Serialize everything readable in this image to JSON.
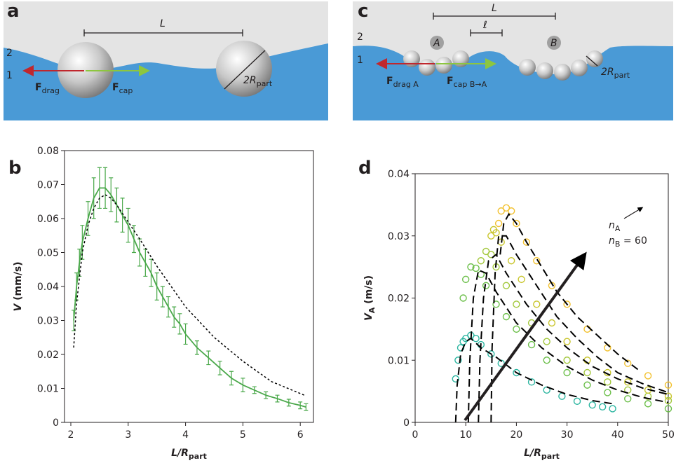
{
  "diagrams": {
    "a": {
      "panel": "a",
      "length": "L",
      "upper_fluid": "2",
      "lower_fluid": "1",
      "force_drag": {
        "main": "F",
        "sub": "drag"
      },
      "force_cap": {
        "main": "F",
        "sub": "cap"
      },
      "diameter": {
        "main": "2R",
        "sub": "part"
      }
    },
    "c": {
      "panel": "c",
      "length": "L",
      "gap": "ℓ",
      "cluster_a": "A",
      "cluster_b": "B",
      "upper_fluid": "2",
      "lower_fluid": "1",
      "force_drag": {
        "main": "F",
        "sub": "drag A"
      },
      "force_cap": {
        "main": "F",
        "sub": "cap B→A"
      },
      "diameter": {
        "main": "2R",
        "sub": "part"
      }
    }
  },
  "chart_data": [
    {
      "type": "line",
      "panel": "b",
      "xlabel": {
        "main": "L/R",
        "sub": "part"
      },
      "ylabel": {
        "main": "V",
        "rest": " (mm/s)"
      },
      "xlim": [
        1.89,
        6.23
      ],
      "xticks": [
        2,
        3,
        4,
        5,
        6
      ],
      "ylim": [
        0,
        0.08
      ],
      "yticks": [
        0,
        0.01,
        0.02,
        0.03,
        0.04,
        0.05,
        0.06,
        0.07,
        0.08
      ],
      "series": [
        {
          "type": "errorbar",
          "color": "#4aa84a",
          "x": [
            2.05,
            2.1,
            2.15,
            2.2,
            2.3,
            2.4,
            2.5,
            2.6,
            2.7,
            2.8,
            2.9,
            3.0,
            3.1,
            3.2,
            3.3,
            3.4,
            3.5,
            3.6,
            3.7,
            3.8,
            3.9,
            4.0,
            4.2,
            4.4,
            4.6,
            4.8,
            5.0,
            5.2,
            5.4,
            5.6,
            5.8,
            6.0,
            6.1
          ],
          "values": [
            0.03,
            0.04,
            0.047,
            0.053,
            0.06,
            0.066,
            0.069,
            0.069,
            0.067,
            0.064,
            0.061,
            0.058,
            0.054,
            0.05,
            0.047,
            0.044,
            0.04,
            0.037,
            0.034,
            0.031,
            0.029,
            0.026,
            0.022,
            0.019,
            0.016,
            0.013,
            0.011,
            0.0095,
            0.008,
            0.007,
            0.0058,
            0.005,
            0.0045
          ],
          "errors": [
            0.003,
            0.004,
            0.004,
            0.005,
            0.005,
            0.006,
            0.006,
            0.006,
            0.005,
            0.005,
            0.005,
            0.005,
            0.004,
            0.004,
            0.004,
            0.004,
            0.004,
            0.003,
            0.003,
            0.003,
            0.003,
            0.003,
            0.002,
            0.002,
            0.002,
            0.002,
            0.002,
            0.001,
            0.001,
            0.001,
            0.001,
            0.001,
            0.001
          ]
        },
        {
          "type": "line",
          "color": "#000000",
          "dash": "3,3",
          "x": [
            2.05,
            2.1,
            2.2,
            2.3,
            2.4,
            2.5,
            2.6,
            2.7,
            2.8,
            3.0,
            3.2,
            3.5,
            4.0,
            4.5,
            5.0,
            5.5,
            6.0,
            6.1
          ],
          "values": [
            0.022,
            0.035,
            0.05,
            0.058,
            0.063,
            0.066,
            0.067,
            0.066,
            0.064,
            0.059,
            0.054,
            0.046,
            0.034,
            0.025,
            0.018,
            0.012,
            0.0085,
            0.0078
          ]
        }
      ]
    },
    {
      "type": "scatter",
      "panel": "d",
      "xlabel": {
        "main": "L/R",
        "sub": "part"
      },
      "ylabel": {
        "main": "V",
        "sub": "A",
        "rest": " (m/s)"
      },
      "xlim": [
        0,
        50
      ],
      "xticks": [
        0,
        10,
        20,
        30,
        40,
        50
      ],
      "ylim": [
        0,
        0.04
      ],
      "yticks": [
        0,
        0.01,
        0.02,
        0.03,
        0.04
      ],
      "annotations": [
        {
          "main": "n",
          "sub": "A"
        },
        {
          "main": "n",
          "sub": "B",
          "rest": " = 60"
        }
      ],
      "series": [
        {
          "type": "scatter",
          "color": "#2bb5a0",
          "x": [
            8,
            8.5,
            9,
            9.5,
            10,
            11,
            12,
            13,
            15,
            17,
            20,
            23,
            26,
            29,
            32,
            35,
            37,
            39
          ],
          "values": [
            0.007,
            0.01,
            0.012,
            0.013,
            0.0135,
            0.014,
            0.0135,
            0.0125,
            0.011,
            0.0095,
            0.008,
            0.0065,
            0.0052,
            0.0042,
            0.0034,
            0.0028,
            0.0025,
            0.0022
          ]
        },
        {
          "type": "scatter",
          "color": "#6cbf4a",
          "x": [
            9.5,
            10,
            11,
            12,
            13,
            14,
            16,
            18,
            20,
            23,
            26,
            30,
            34,
            38,
            42,
            46,
            50
          ],
          "values": [
            0.02,
            0.023,
            0.025,
            0.0248,
            0.0238,
            0.022,
            0.019,
            0.017,
            0.015,
            0.0125,
            0.01,
            0.008,
            0.006,
            0.0048,
            0.0038,
            0.003,
            0.0022
          ]
        },
        {
          "type": "scatter",
          "color": "#a3c83c",
          "x": [
            13,
            14,
            15,
            16,
            18,
            20,
            23,
            26,
            30,
            34,
            38,
            42,
            46,
            50
          ],
          "values": [
            0.026,
            0.0275,
            0.027,
            0.025,
            0.022,
            0.019,
            0.016,
            0.013,
            0.01,
            0.008,
            0.0065,
            0.0052,
            0.0042,
            0.0035
          ]
        },
        {
          "type": "scatter",
          "color": "#c9c62e",
          "x": [
            15,
            15.5,
            16,
            17,
            19,
            21,
            24,
            27,
            30,
            34,
            38,
            42,
            46,
            50
          ],
          "values": [
            0.03,
            0.031,
            0.0305,
            0.029,
            0.026,
            0.023,
            0.019,
            0.016,
            0.013,
            0.01,
            0.008,
            0.0065,
            0.0052,
            0.0042
          ]
        },
        {
          "type": "scatter",
          "color": "#f2c12e",
          "x": [
            16.5,
            17,
            18,
            19,
            20,
            22,
            24,
            27,
            30,
            34,
            38,
            42,
            46,
            50
          ],
          "values": [
            0.032,
            0.034,
            0.0345,
            0.034,
            0.032,
            0.029,
            0.026,
            0.022,
            0.019,
            0.015,
            0.012,
            0.0095,
            0.0075,
            0.006
          ]
        },
        {
          "type": "line",
          "color": "#000000",
          "dash": "11,6",
          "x": [
            8,
            8.3,
            9,
            10,
            11,
            13,
            16,
            20,
            25,
            30,
            35,
            39
          ],
          "values": [
            0,
            0.006,
            0.011,
            0.013,
            0.0135,
            0.012,
            0.0105,
            0.008,
            0.006,
            0.0045,
            0.0035,
            0.003
          ]
        },
        {
          "type": "line",
          "color": "#000000",
          "dash": "11,6",
          "x": [
            10.5,
            10.8,
            11.5,
            12.5,
            14,
            16,
            20,
            25,
            30,
            35,
            40,
            45,
            50
          ],
          "values": [
            0,
            0.01,
            0.02,
            0.0245,
            0.024,
            0.021,
            0.016,
            0.012,
            0.009,
            0.0068,
            0.0052,
            0.004,
            0.0032
          ]
        },
        {
          "type": "line",
          "color": "#000000",
          "dash": "11,6",
          "x": [
            12.5,
            12.8,
            13.5,
            14.5,
            16,
            18,
            22,
            26,
            30,
            35,
            40,
            45,
            50
          ],
          "values": [
            0,
            0.01,
            0.02,
            0.026,
            0.027,
            0.024,
            0.019,
            0.015,
            0.012,
            0.009,
            0.007,
            0.0055,
            0.0045
          ]
        },
        {
          "type": "line",
          "color": "#000000",
          "dash": "11,6",
          "x": [
            15,
            15.2,
            15.8,
            16.5,
            18,
            20,
            24,
            28,
            32,
            36,
            40,
            45,
            50
          ],
          "values": [
            0,
            0.012,
            0.024,
            0.03,
            0.03,
            0.027,
            0.022,
            0.017,
            0.0135,
            0.0105,
            0.008,
            0.0062,
            0.0048
          ]
        },
        {
          "type": "line",
          "color": "#000000",
          "dash": "11,6",
          "x": [
            16.8,
            17.5,
            18.5,
            20,
            22,
            25,
            28,
            32,
            36,
            40,
            44
          ],
          "values": [
            0.027,
            0.032,
            0.0335,
            0.032,
            0.029,
            0.025,
            0.021,
            0.017,
            0.014,
            0.011,
            0.0085
          ]
        }
      ]
    }
  ]
}
